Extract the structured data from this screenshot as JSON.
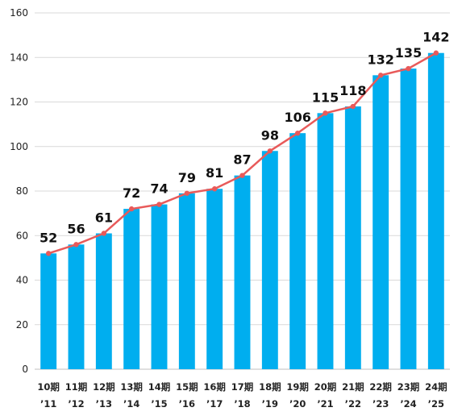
{
  "chart_data": {
    "type": "bar",
    "categories": [
      {
        "period": "10期",
        "year": "’11"
      },
      {
        "period": "11期",
        "year": "’12"
      },
      {
        "period": "12期",
        "year": "’13"
      },
      {
        "period": "13期",
        "year": "’14"
      },
      {
        "period": "14期",
        "year": "’15"
      },
      {
        "period": "15期",
        "year": "’16"
      },
      {
        "period": "16期",
        "year": "’17"
      },
      {
        "period": "17期",
        "year": "’18"
      },
      {
        "period": "18期",
        "year": "’19"
      },
      {
        "period": "19期",
        "year": "’20"
      },
      {
        "period": "20期",
        "year": "’21"
      },
      {
        "period": "21期",
        "year": "’22"
      },
      {
        "period": "22期",
        "year": "’23"
      },
      {
        "period": "23期",
        "year": "’24"
      },
      {
        "period": "24期",
        "year": "’25"
      }
    ],
    "values": [
      52,
      56,
      61,
      72,
      74,
      79,
      81,
      87,
      98,
      106,
      115,
      118,
      132,
      135,
      142
    ],
    "overlay": "line",
    "data_labels": true,
    "ylim": [
      0,
      160
    ],
    "yticks": [
      0,
      20,
      40,
      60,
      80,
      100,
      120,
      140,
      160
    ],
    "grid": "horizontal",
    "legend": "none",
    "colors": {
      "bar": "#00aeef",
      "line": "#e85a5a",
      "marker": "#e85a5a",
      "grid": "#d9d9d9",
      "axis": "#bfbfbf"
    }
  }
}
